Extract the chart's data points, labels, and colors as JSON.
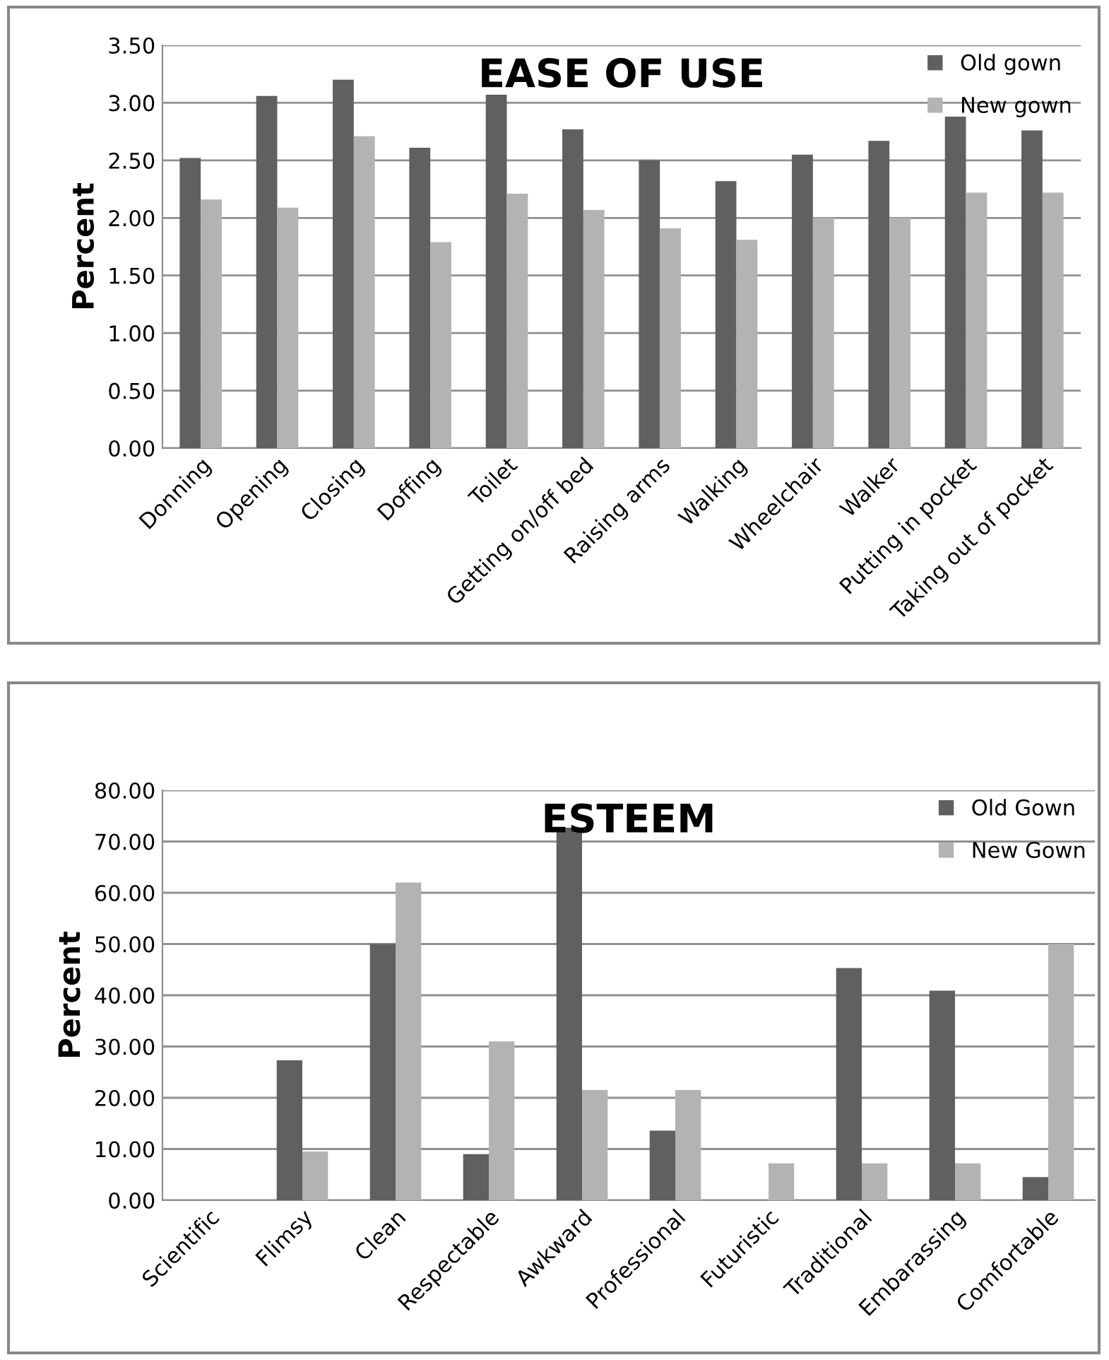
{
  "chart_data": [
    {
      "type": "bar",
      "title": "EASE OF USE",
      "ylabel": "Percent",
      "categories": [
        "Donning",
        "Opening",
        "Closing",
        "Doffing",
        "Toilet",
        "Getting on/off bed",
        "Raising arms",
        "Walking",
        "Wheelchair",
        "Walker",
        "Putting in pocket",
        "Taking out of pocket"
      ],
      "series": [
        {
          "name": "Old gown",
          "color": "#606060",
          "values": [
            2.52,
            3.06,
            3.2,
            2.61,
            3.07,
            2.77,
            2.5,
            2.32,
            2.55,
            2.67,
            2.88,
            2.76
          ]
        },
        {
          "name": "New gown",
          "color": "#b3b3b3",
          "values": [
            2.16,
            2.09,
            2.71,
            1.79,
            2.21,
            2.07,
            1.91,
            1.81,
            2.0,
            2.0,
            2.22,
            2.22
          ]
        }
      ],
      "ylim": [
        0,
        3.5
      ],
      "yticks": [
        {
          "value": 0,
          "label": "0.00"
        },
        {
          "value": 0.5,
          "label": "0.50"
        },
        {
          "value": 1,
          "label": "1.00"
        },
        {
          "value": 1.5,
          "label": "1.50"
        },
        {
          "value": 2,
          "label": "2.00"
        },
        {
          "value": 2.5,
          "label": "2.50"
        },
        {
          "value": 3,
          "label": "3.00"
        },
        {
          "value": 3.5,
          "label": "3.50"
        }
      ],
      "grid": "y",
      "legend": "top right"
    },
    {
      "type": "bar",
      "title": "ESTEEM",
      "ylabel": "Percent",
      "categories": [
        "Scientific",
        "Flimsy",
        "Clean",
        "Respectable",
        "Awkward",
        "Professional",
        "Futuristic",
        "Traditional",
        "Embarassing",
        "Comfortable"
      ],
      "series": [
        {
          "name": "Old Gown",
          "color": "#606060",
          "values": [
            null,
            27.3,
            50.0,
            9.0,
            72.7,
            13.6,
            0,
            45.3,
            40.9,
            4.5
          ]
        },
        {
          "name": "New Gown",
          "color": "#b3b3b3",
          "values": [
            null,
            9.5,
            62.0,
            31.0,
            21.5,
            21.5,
            7.2,
            7.2,
            7.2,
            50.0
          ]
        }
      ],
      "ylim": [
        0,
        80
      ],
      "yticks": [
        {
          "value": 0,
          "label": "0.00"
        },
        {
          "value": 10,
          "label": "10.00"
        },
        {
          "value": 20,
          "label": "20.00"
        },
        {
          "value": 30,
          "label": "30.00"
        },
        {
          "value": 40,
          "label": "40.00"
        },
        {
          "value": 50,
          "label": "50.00"
        },
        {
          "value": 60,
          "label": "60.00"
        },
        {
          "value": 70,
          "label": "70.00"
        },
        {
          "value": 80,
          "label": "80.00"
        }
      ],
      "grid": "y",
      "legend": "top right"
    }
  ]
}
